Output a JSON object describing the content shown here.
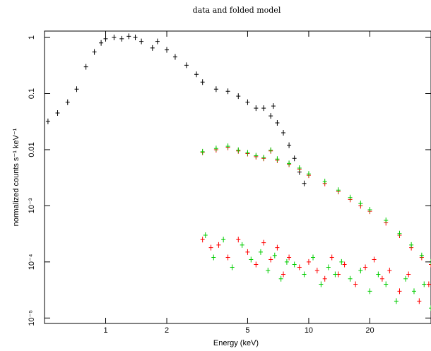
{
  "chart_data": {
    "type": "scatter",
    "title": "data and folded model",
    "xlabel": "Energy (keV)",
    "ylabel": "normalized counts s⁻¹ keV⁻¹",
    "xscale": "log",
    "yscale": "log",
    "xlim": [
      0.5,
      40
    ],
    "ylim": [
      8e-06,
      1.3
    ],
    "grid": false,
    "x_ticks": [
      {
        "value": 1,
        "label": "1"
      },
      {
        "value": 2,
        "label": "2"
      },
      {
        "value": 5,
        "label": "5"
      },
      {
        "value": 10,
        "label": "10"
      },
      {
        "value": 20,
        "label": "20"
      }
    ],
    "y_ticks": [
      {
        "value": 1,
        "label": "1"
      },
      {
        "value": 0.1,
        "label": "0.1"
      },
      {
        "value": 0.01,
        "label": "0.01"
      },
      {
        "value": 0.001,
        "label": "10⁻³"
      },
      {
        "value": 0.0001,
        "label": "10⁻⁴"
      },
      {
        "value": 1e-05,
        "label": "10⁻⁵"
      }
    ],
    "series": [
      {
        "color": "#000000",
        "x": [
          0.52,
          0.58,
          0.65,
          0.72,
          0.8,
          0.88,
          0.95,
          1.0,
          1.1,
          1.2,
          1.3,
          1.4,
          1.5,
          1.7,
          1.8,
          2.0,
          2.2,
          2.5,
          2.8,
          3.0,
          3.5,
          4.0,
          4.5,
          5.0,
          5.5,
          6.0,
          6.5,
          6.7,
          7.0,
          7.5,
          8.0,
          8.5,
          9.0,
          9.5
        ],
        "y": [
          0.032,
          0.045,
          0.07,
          0.12,
          0.3,
          0.55,
          0.8,
          0.95,
          1.0,
          0.95,
          1.05,
          1.0,
          0.85,
          0.65,
          0.85,
          0.6,
          0.45,
          0.32,
          0.22,
          0.16,
          0.12,
          0.11,
          0.09,
          0.07,
          0.055,
          0.055,
          0.04,
          0.06,
          0.03,
          0.02,
          0.012,
          0.007,
          0.004,
          0.0025
        ]
      },
      {
        "color": "#ff0000",
        "x": [
          3.0,
          3.5,
          4.0,
          4.5,
          5.0,
          5.5,
          6.0,
          6.5,
          7.0,
          8.0,
          9.0,
          10,
          12,
          14,
          16,
          18,
          20,
          24,
          28,
          32,
          36,
          40
        ],
        "y": [
          0.009,
          0.01,
          0.011,
          0.0095,
          0.0085,
          0.0075,
          0.007,
          0.0095,
          0.0065,
          0.0055,
          0.0045,
          0.0035,
          0.0025,
          0.0018,
          0.0013,
          0.001,
          0.0008,
          0.0005,
          0.0003,
          0.00018,
          0.00012,
          9e-05
        ]
      },
      {
        "color": "#00cc00",
        "x": [
          3.0,
          3.5,
          4.0,
          4.5,
          5.0,
          5.5,
          6.0,
          6.5,
          7.0,
          8.0,
          9.0,
          10,
          12,
          14,
          16,
          18,
          20,
          24,
          28,
          32,
          36,
          40
        ],
        "y": [
          0.0092,
          0.0105,
          0.0115,
          0.0098,
          0.0088,
          0.0078,
          0.0072,
          0.0098,
          0.0068,
          0.0057,
          0.0047,
          0.0037,
          0.0027,
          0.0019,
          0.0014,
          0.0011,
          0.00085,
          0.00055,
          0.00032,
          0.0002,
          0.00013,
          0.0001
        ]
      },
      {
        "color": "#ff0000",
        "x": [
          3.0,
          3.3,
          3.6,
          4.0,
          4.5,
          5.0,
          5.5,
          6.0,
          6.5,
          7.0,
          7.5,
          8.0,
          9.0,
          10,
          11,
          12,
          13,
          14,
          15,
          17,
          19,
          21,
          23,
          25,
          28,
          31,
          35,
          39
        ],
        "y": [
          0.00025,
          0.00018,
          0.0002,
          0.00012,
          0.00025,
          0.00015,
          9e-05,
          0.00022,
          0.00011,
          0.00018,
          6e-05,
          0.00012,
          8e-05,
          0.0001,
          7e-05,
          5e-05,
          0.00012,
          6e-05,
          9e-05,
          4e-05,
          8e-05,
          0.00011,
          5e-05,
          7e-05,
          3e-05,
          6e-05,
          2e-05,
          4e-05
        ]
      },
      {
        "color": "#00cc00",
        "x": [
          3.1,
          3.4,
          3.8,
          4.2,
          4.7,
          5.2,
          5.8,
          6.3,
          6.8,
          7.3,
          7.8,
          8.5,
          9.5,
          10.5,
          11.5,
          12.5,
          13.5,
          14.5,
          16,
          18,
          20,
          22,
          24,
          27,
          30,
          33,
          37,
          40
        ],
        "y": [
          0.0003,
          0.00012,
          0.00025,
          8e-05,
          0.0002,
          0.00011,
          0.00015,
          7e-05,
          0.00013,
          5e-05,
          0.0001,
          9e-05,
          6e-05,
          0.00012,
          4e-05,
          8e-05,
          6e-05,
          0.0001,
          5e-05,
          7e-05,
          3e-05,
          6e-05,
          4e-05,
          2e-05,
          5e-05,
          3e-05,
          4e-05,
          1.5e-05
        ]
      }
    ]
  }
}
